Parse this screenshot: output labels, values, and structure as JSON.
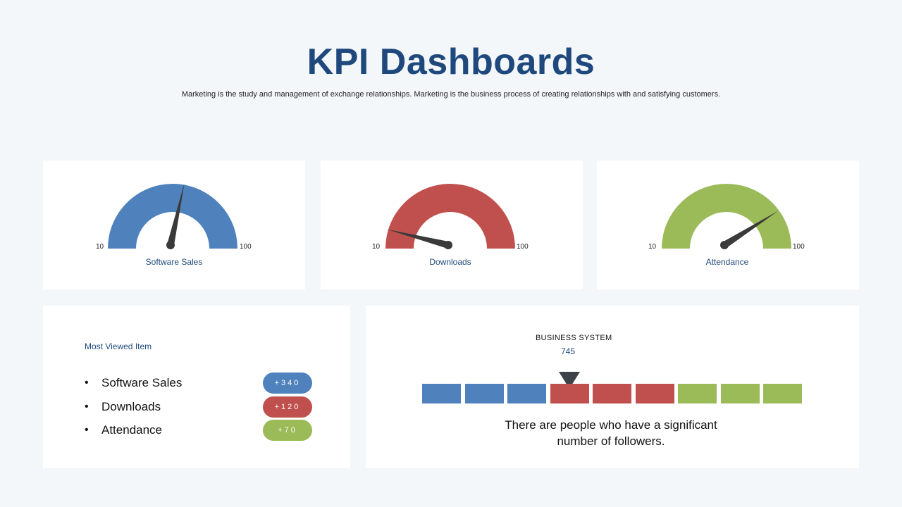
{
  "header": {
    "title": "KPI Dashboards",
    "subtitle": "Marketing is the study and management of exchange relationships. Marketing is the business process of creating relationships with and satisfying customers."
  },
  "colors": {
    "blue": "#4f81bd",
    "red": "#c0504d",
    "green": "#9bbb59",
    "title": "#1f497d",
    "needle": "#3a3a3a"
  },
  "gauges": [
    {
      "label": "Software Sales",
      "min": "10",
      "max": "100",
      "fraction": 0.57,
      "color": "#4f81bd"
    },
    {
      "label": "Downloads",
      "min": "10",
      "max": "100",
      "fraction": 0.08,
      "color": "#c0504d"
    },
    {
      "label": "Attendance",
      "min": "10",
      "max": "100",
      "fraction": 0.82,
      "color": "#9bbb59"
    }
  ],
  "most_viewed": {
    "title": "Most Viewed Item",
    "items": [
      {
        "bullet": "•",
        "label": "Software Sales",
        "value": "+340",
        "color": "#4f81bd"
      },
      {
        "bullet": "•",
        "label": "Downloads",
        "value": "+120",
        "color": "#c0504d"
      },
      {
        "bullet": "•",
        "label": "Attendance",
        "value": "+70",
        "color": "#9bbb59"
      }
    ]
  },
  "business_system": {
    "title": "BUSINESS  SYSTEM",
    "value": "745",
    "segments": [
      "#4f81bd",
      "#4f81bd",
      "#4f81bd",
      "#c0504d",
      "#c0504d",
      "#c0504d",
      "#9bbb59",
      "#9bbb59",
      "#9bbb59"
    ],
    "marker_segment": 3,
    "text_line1": "There are people who have a significant",
    "text_line2": "number of followers."
  }
}
